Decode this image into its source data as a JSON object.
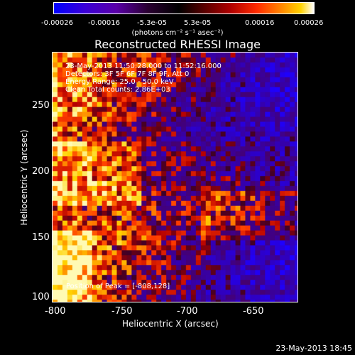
{
  "colorbar": {
    "ticks": [
      "-0.00026",
      "-0.00016",
      "-5.3e-05",
      "5.3e-05",
      "0.00016",
      "0.00026"
    ],
    "units": "(photons cm⁻² s⁻¹ asec⁻²)"
  },
  "plot": {
    "title": "Reconstructed RHESSI Image",
    "info_lines": [
      "23-May-2013 11:50:28.000 to 11:52:16.000",
      "Detectors: 3F 5F 6F 7F 8F 9F, Att 0",
      "Energy Range: 25.0 - 50.0 keV",
      "Clean    Total counts: 2.86E+03"
    ],
    "peak_text": "Position of Peak = [-808,128]",
    "x_axis": {
      "label": "Heliocentric X (arcsec)",
      "ticks": [
        "-800",
        "-750",
        "-700",
        "-650"
      ]
    },
    "y_axis": {
      "label": "Heliocentric Y (arcsec)",
      "ticks": [
        "250",
        "200",
        "150",
        "100"
      ]
    }
  },
  "footer": {
    "timestamp": "23-May-2013 18:45"
  }
}
